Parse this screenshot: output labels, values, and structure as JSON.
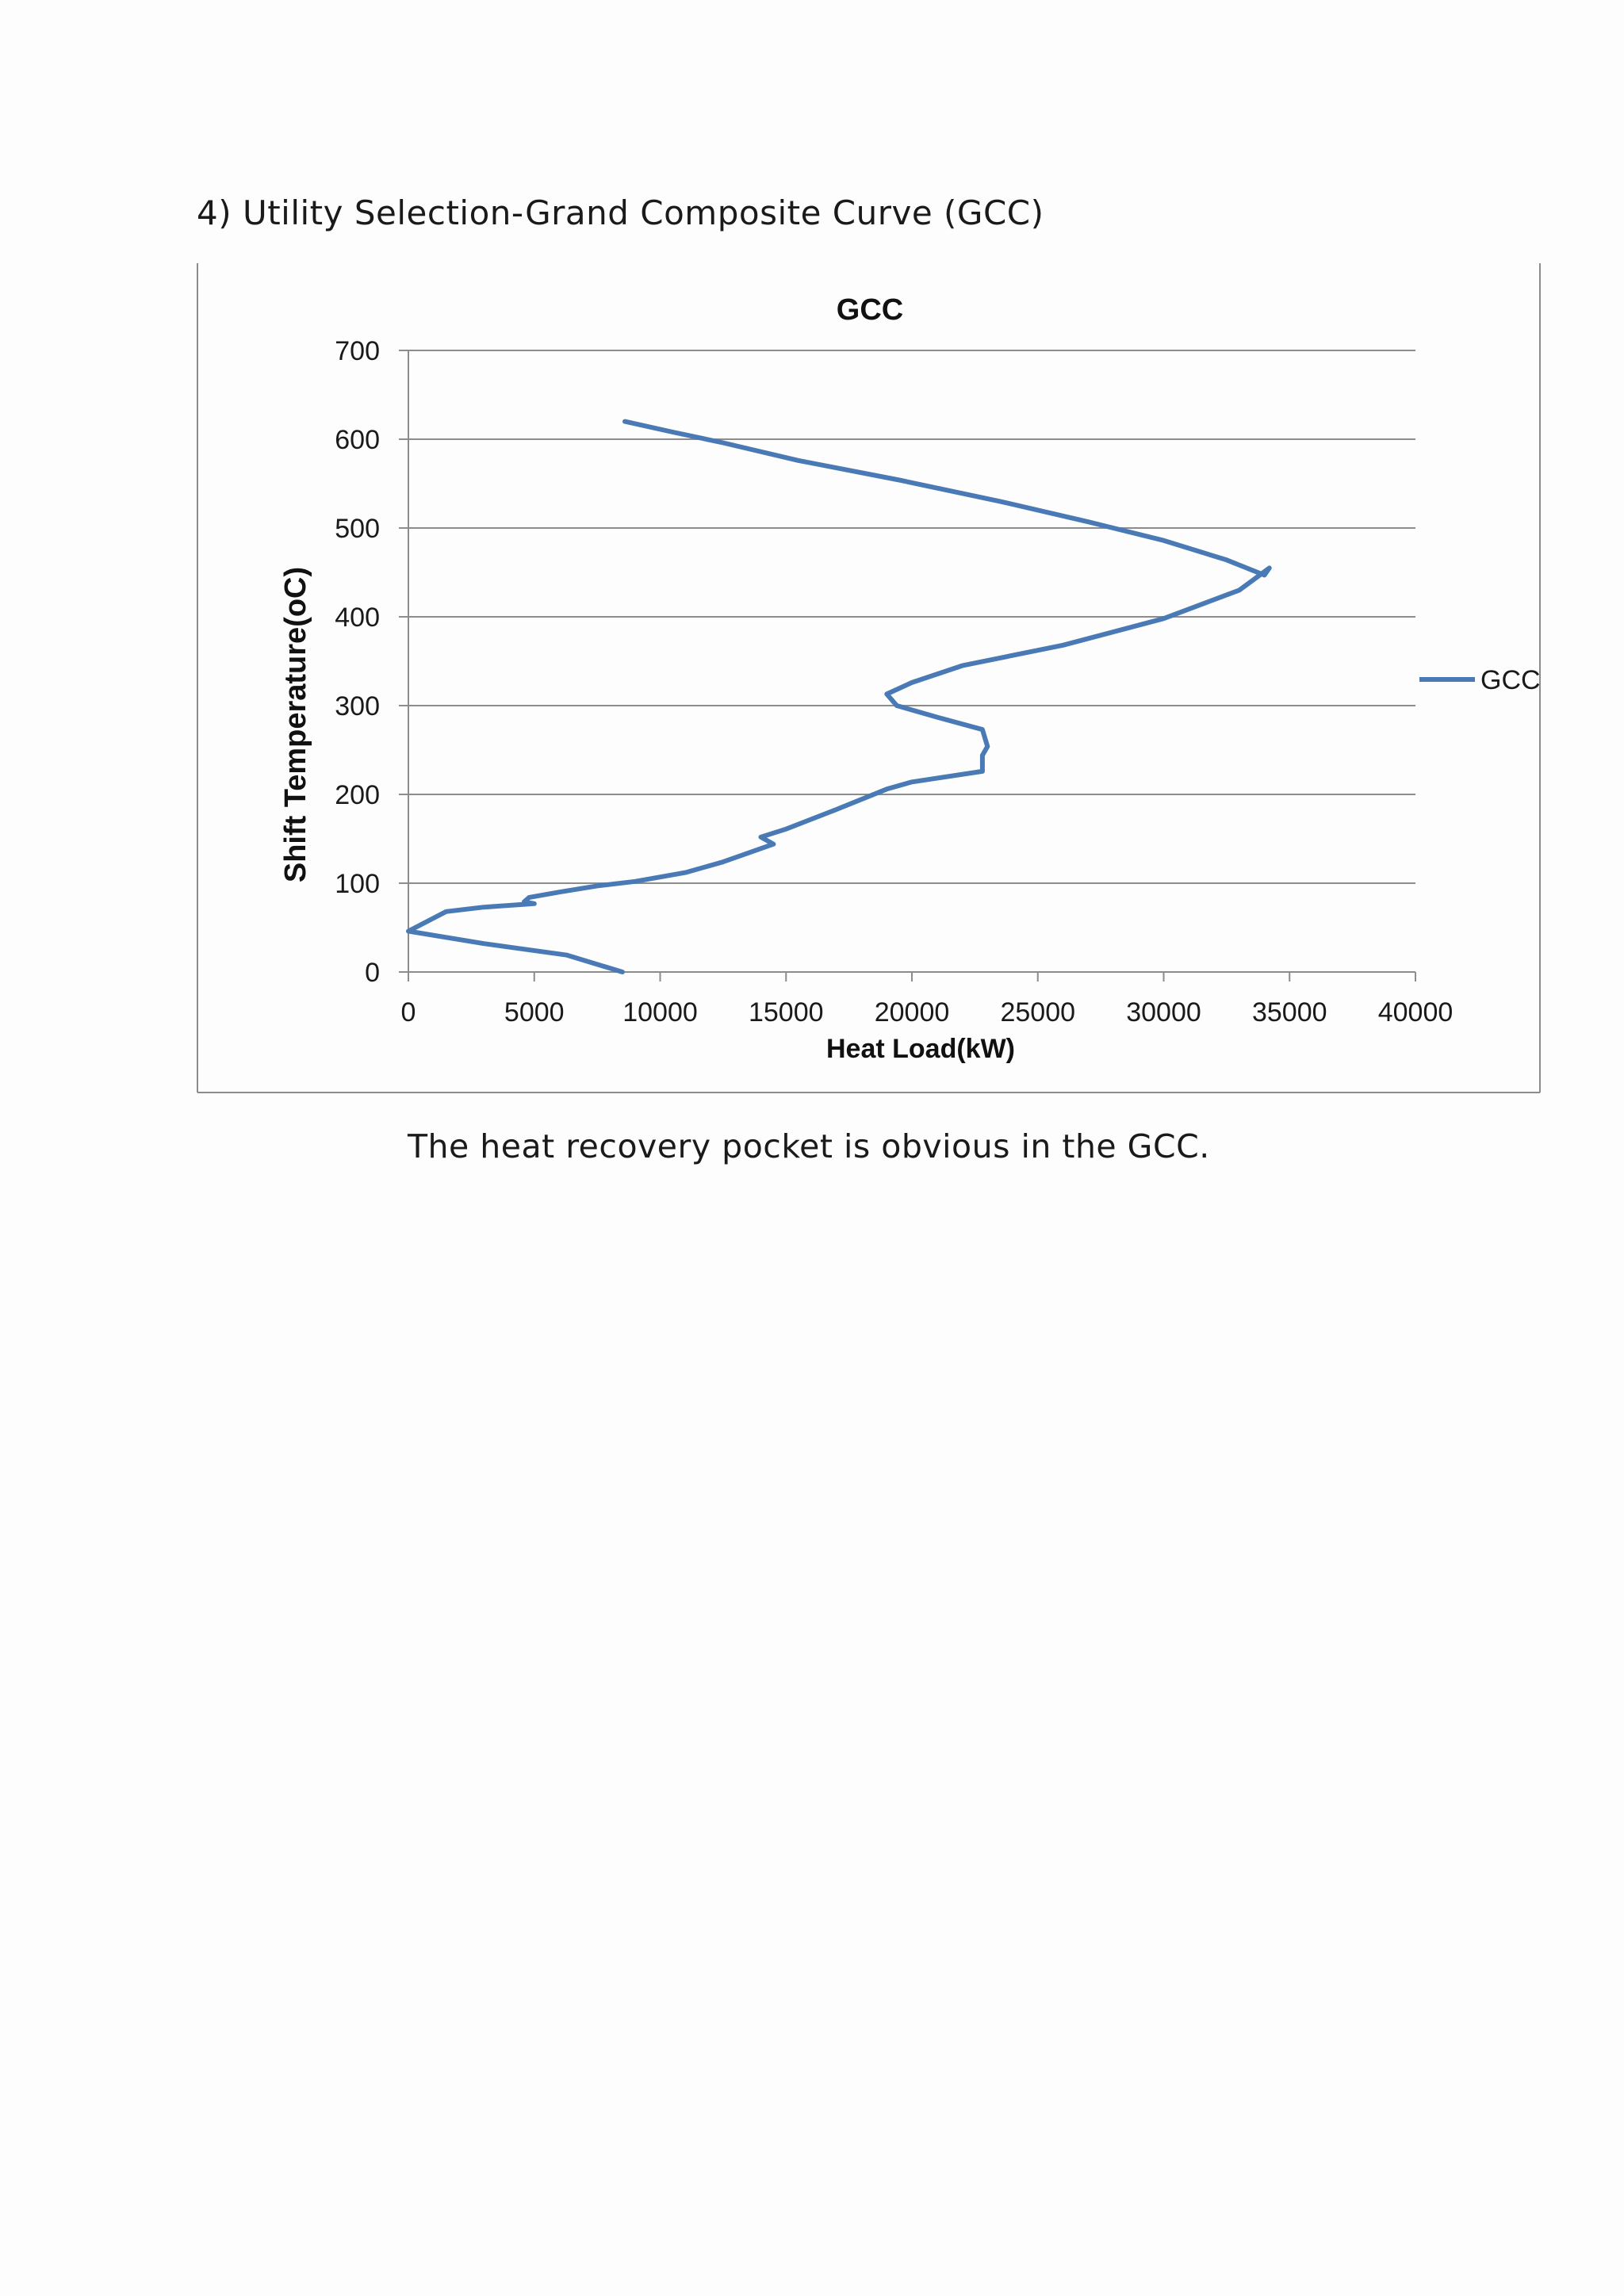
{
  "document": {
    "heading": "4) Utility Selection-Grand Composite Curve (GCC)",
    "caption": "The heat recovery pocket is obvious in the GCC."
  },
  "chart_data": {
    "type": "line",
    "title": "GCC",
    "xlabel": "Heat Load(kW)",
    "ylabel": "Shift Temperature(oC)",
    "xlim": [
      0,
      40000
    ],
    "ylim": [
      0,
      700
    ],
    "x_ticks": [
      0,
      5000,
      10000,
      15000,
      20000,
      25000,
      30000,
      35000,
      40000
    ],
    "y_ticks": [
      0,
      100,
      200,
      300,
      400,
      500,
      600,
      700
    ],
    "grid": "horizontal",
    "legend_position": "right",
    "colors": {
      "series": "#4a7ab5",
      "grid": "#8c8c8c",
      "axis": "#8c8c8c",
      "frame": "#8c8c8c"
    },
    "series": [
      {
        "name": "GCC",
        "x": [
          8600,
          10500,
          12500,
          15500,
          19500,
          23500,
          27000,
          30000,
          32500,
          34000,
          34200,
          33000,
          30000,
          26000,
          22000,
          20000,
          19000,
          19400,
          21000,
          22800,
          23000,
          22800,
          22800,
          20000,
          19000,
          17000,
          15000,
          14000,
          14500,
          12500,
          11000,
          9000,
          7500,
          6000,
          4800,
          4600,
          5000,
          3000,
          1500,
          0,
          3000,
          6300,
          8500
        ],
        "y": [
          620,
          608,
          596,
          576,
          554,
          530,
          507,
          486,
          464,
          447,
          455,
          430,
          398,
          368,
          345,
          326,
          313,
          300,
          287,
          273,
          254,
          244,
          226,
          214,
          206,
          183,
          161,
          152,
          144,
          124,
          112,
          102,
          97,
          90,
          84,
          79,
          77,
          73,
          68,
          46,
          32,
          19,
          0
        ]
      }
    ]
  }
}
